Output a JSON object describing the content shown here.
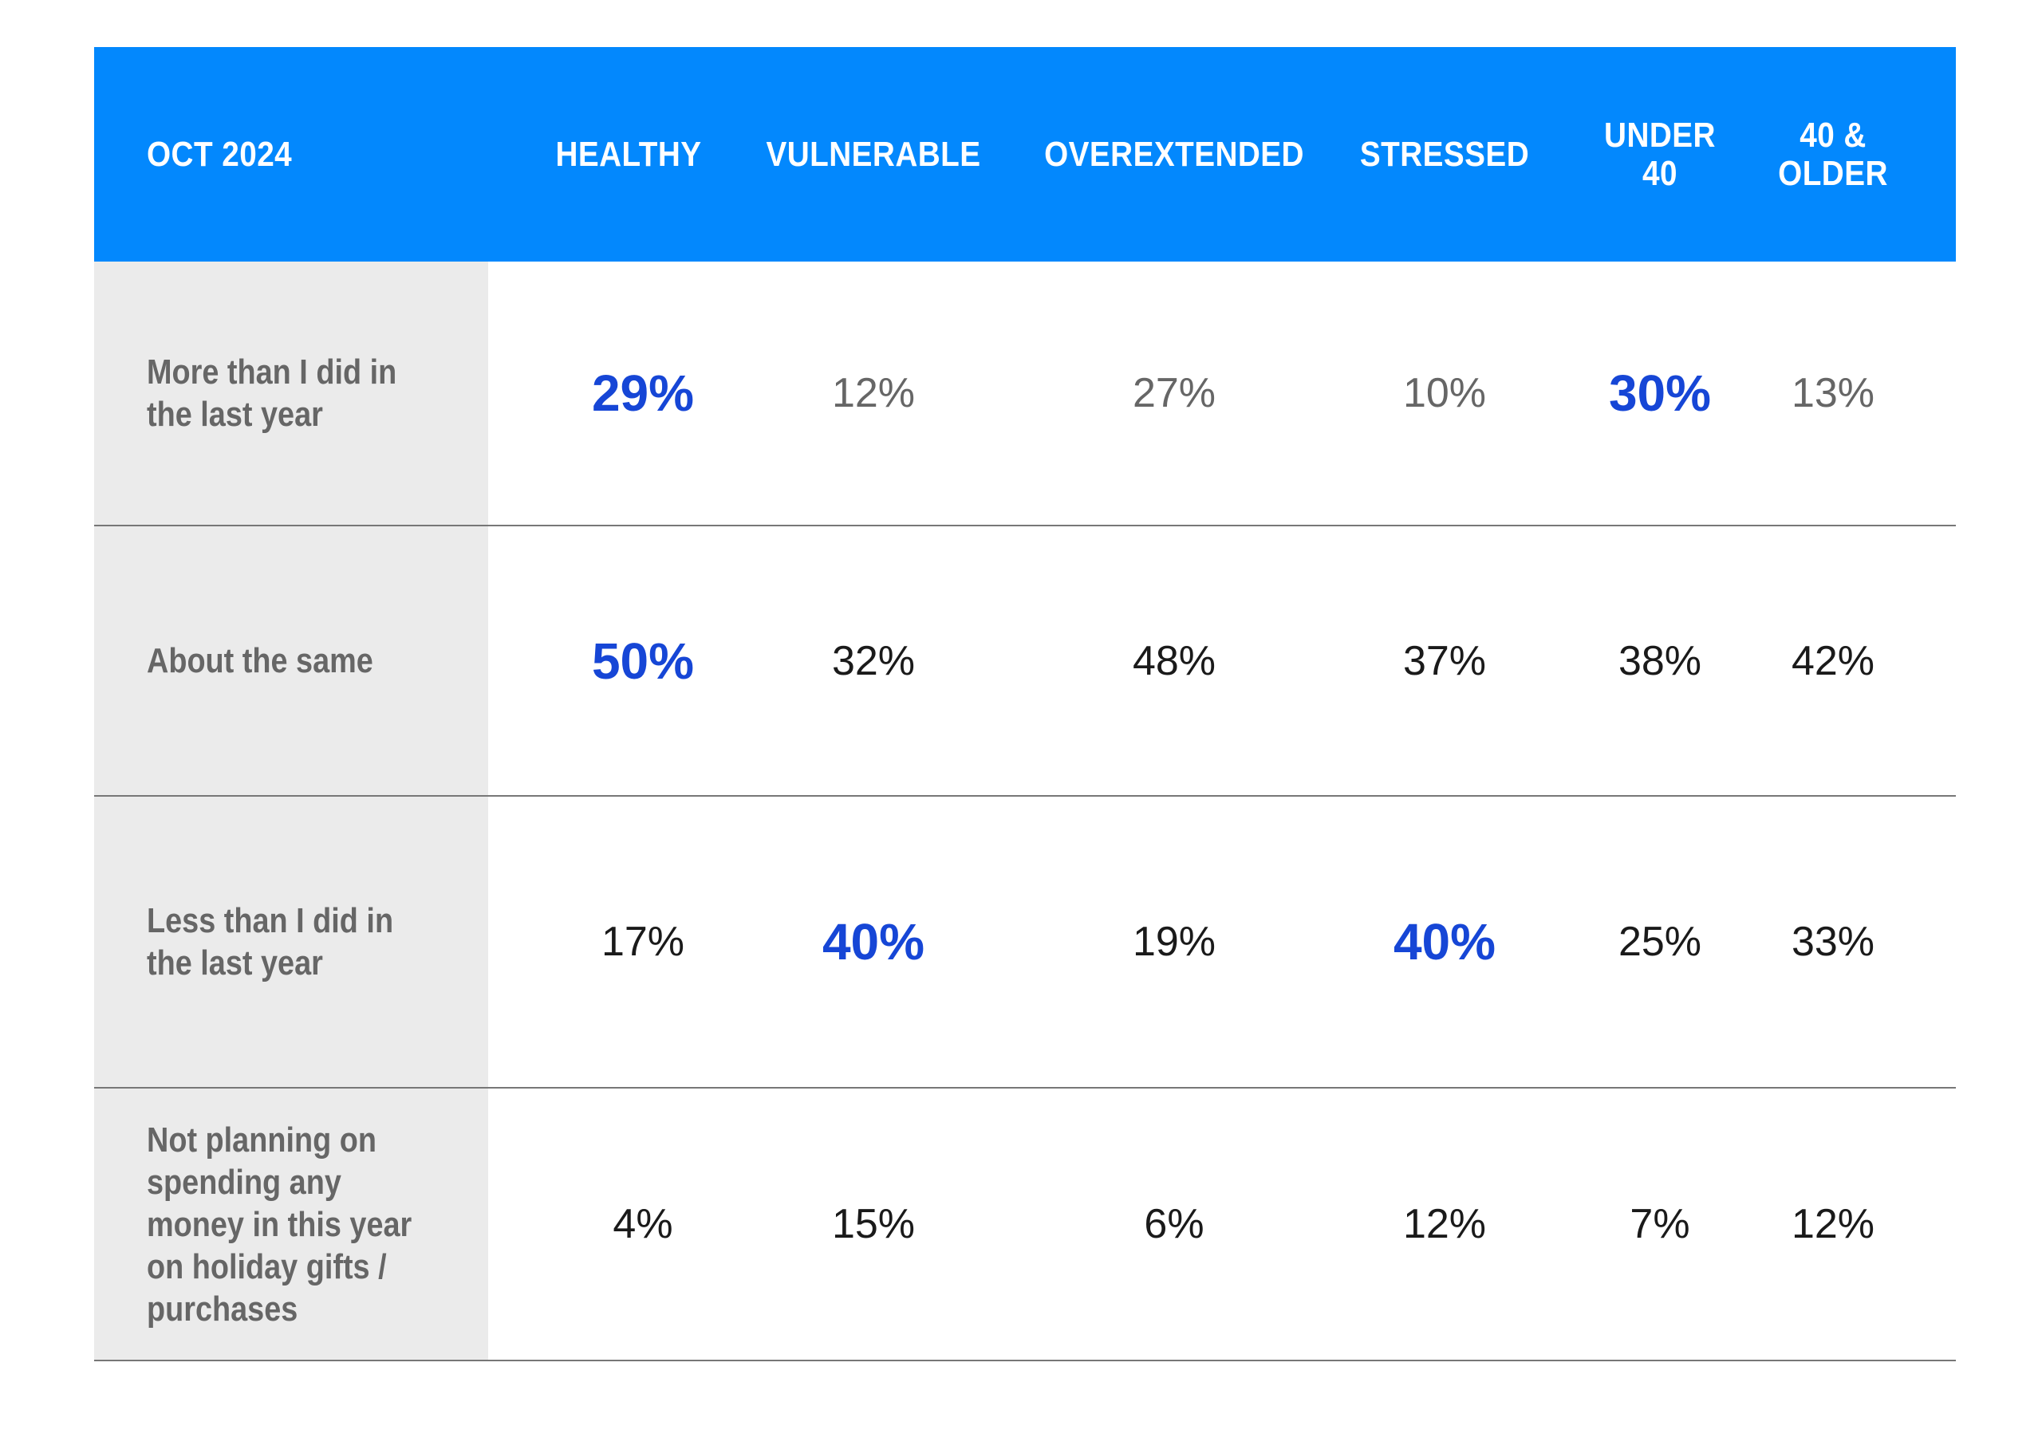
{
  "chart_data": {
    "type": "table",
    "corner_label": "OCT 2024",
    "columns": [
      "HEALTHY",
      "VULNERABLE",
      "OVEREXTENDED",
      "STRESSED",
      "UNDER\n40",
      "40 &\nOLDER"
    ],
    "rows": [
      {
        "label": "More than I did in\nthe last year",
        "values": [
          "29%",
          "12%",
          "27%",
          "10%",
          "30%",
          "13%"
        ],
        "highlight": [
          0,
          4
        ],
        "muted": true
      },
      {
        "label": "About the same",
        "values": [
          "50%",
          "32%",
          "48%",
          "37%",
          "38%",
          "42%"
        ],
        "highlight": [
          0
        ],
        "muted": false
      },
      {
        "label": "Less than I did in\nthe last year",
        "values": [
          "17%",
          "40%",
          "19%",
          "40%",
          "25%",
          "33%"
        ],
        "highlight": [
          1,
          3
        ],
        "muted": false
      },
      {
        "label": "Not planning on\nspending any\nmoney in this year\non holiday gifts /\npurchases",
        "values": [
          "4%",
          "15%",
          "6%",
          "12%",
          "7%",
          "12%"
        ],
        "highlight": [],
        "muted": false
      }
    ]
  },
  "colors": {
    "header_bg": "#0388fd",
    "highlight": "#1646d6",
    "label_bg": "#ebebeb",
    "label_text": "#666666"
  }
}
